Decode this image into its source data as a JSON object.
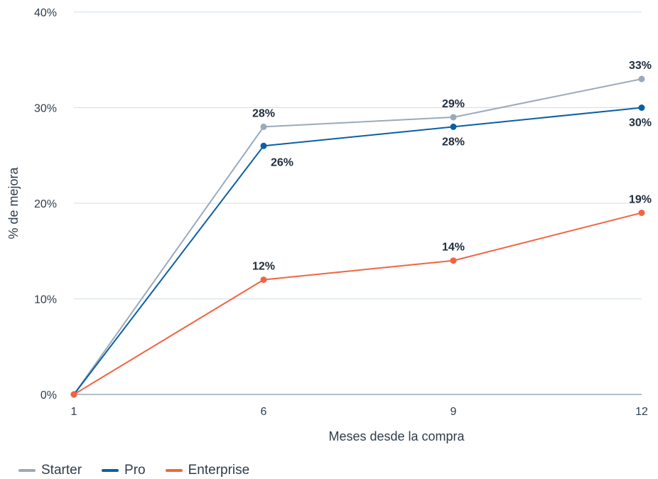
{
  "chart_data": {
    "type": "line",
    "x": [
      1,
      6,
      9,
      12
    ],
    "xlabel": "Meses desde la compra",
    "ylabel": "% de mejora",
    "ylim": [
      0,
      40
    ],
    "yticks": [
      0,
      10,
      20,
      30,
      40
    ],
    "ytick_labels": [
      "0%",
      "10%",
      "20%",
      "30%",
      "40%"
    ],
    "xtick_labels": [
      "1",
      "6",
      "9",
      "12"
    ],
    "grid": true,
    "legend_position": "bottom-left",
    "series": [
      {
        "name": "Starter",
        "color": "#9aaabb",
        "values": [
          0,
          28,
          29,
          33
        ],
        "labels": [
          "",
          "28%",
          "29%",
          "33%"
        ],
        "label_side": [
          "",
          "above",
          "above",
          "above"
        ]
      },
      {
        "name": "Pro",
        "color": "#0b5fa3",
        "values": [
          0,
          26,
          28,
          30
        ],
        "labels": [
          "",
          "26%",
          "28%",
          "30%"
        ],
        "label_side": [
          "",
          "below-right",
          "below",
          "below"
        ]
      },
      {
        "name": "Enterprise",
        "color": "#f26440",
        "values": [
          0,
          12,
          14,
          19
        ],
        "labels": [
          "",
          "12%",
          "14%",
          "19%"
        ],
        "label_side": [
          "",
          "above",
          "above",
          "above"
        ]
      }
    ]
  }
}
